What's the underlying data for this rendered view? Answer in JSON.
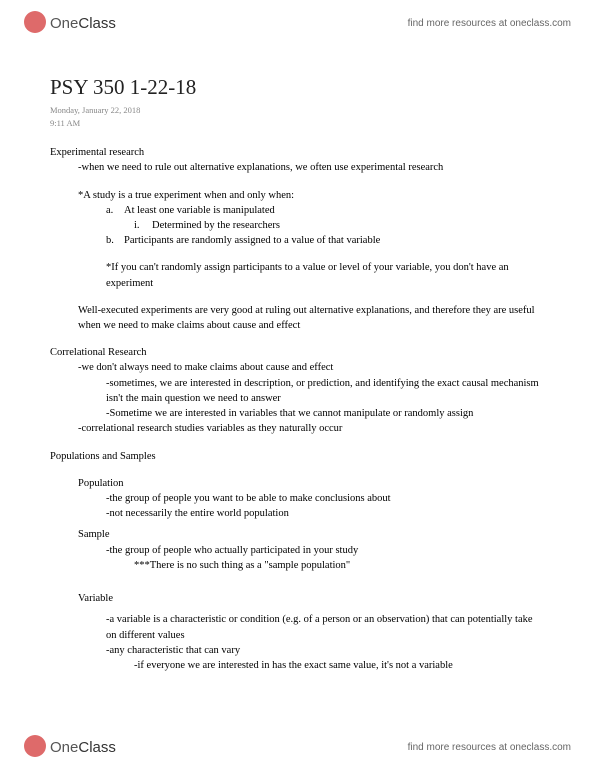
{
  "brand": {
    "logo_one": "One",
    "logo_class": "Class",
    "tagline": "find more resources at oneclass.com"
  },
  "doc": {
    "title": "PSY 350 1-22-18",
    "date": "Monday, January 22, 2018",
    "time": "9:11 AM"
  },
  "s1": {
    "head": "Experimental research",
    "l1": "-when we need to rule out alternative explanations, we often use experimental research",
    "l2": "*A study is a true experiment when and only when:",
    "a_marker": "a.",
    "a": "At least one variable is manipulated",
    "i_marker": "i.",
    "i": "Determined by the researchers",
    "b_marker": "b.",
    "b": "Participants are randomly assigned to a value of that variable",
    "l3": "*If you can't randomly assign participants to a value or level of your variable, you don't have an experiment",
    "l4": "Well-executed experiments are very good at ruling out alternative explanations, and therefore they are useful when we need to make claims about cause and effect"
  },
  "s2": {
    "head": "Correlational Research",
    "l1": "-we don't always need to make claims about cause and effect",
    "l2": "-sometimes, we are interested in description, or prediction, and identifying the exact causal mechanism isn't the main question we need to answer",
    "l3": "-Sometime we are interested in variables that we cannot manipulate or randomly assign",
    "l4": "-correlational research studies variables as they naturally occur"
  },
  "s3": {
    "head": "Populations and Samples",
    "pop_head": "Population",
    "pop1": "-the group of people you want to be able to make conclusions about",
    "pop2": "-not necessarily the entire world population",
    "samp_head": "Sample",
    "samp1": "-the group of people who actually participated in your study",
    "samp2": "***There is no such thing as a \"sample population\""
  },
  "s4": {
    "head": "Variable",
    "l1": "-a variable is a characteristic or condition (e.g. of a person or an observation) that can potentially take on different values",
    "l2": "-any characteristic that can vary",
    "l3": "-if everyone we are interested in has the exact same value, it's not a variable"
  }
}
